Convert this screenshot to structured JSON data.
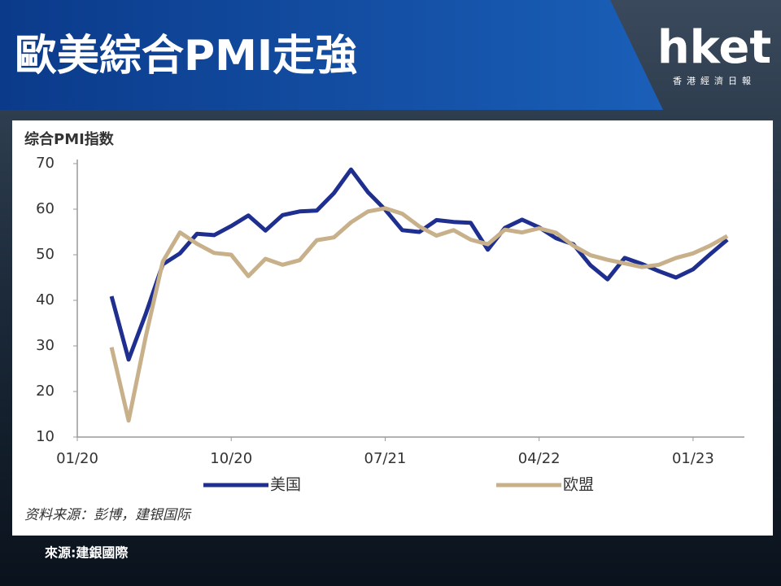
{
  "header": {
    "title": "歐美綜合PMI走強",
    "logo": "hket",
    "logo_subtitle": "香港經濟日報"
  },
  "source": "來源:建銀國際",
  "chart_data": {
    "type": "line",
    "y_axis_label": "综合PMI指数",
    "note": "资料来源：彭博，建银国际",
    "x": [
      "03/20",
      "04/20",
      "05/20",
      "06/20",
      "07/20",
      "08/20",
      "09/20",
      "10/20",
      "11/20",
      "12/20",
      "01/21",
      "02/21",
      "03/21",
      "04/21",
      "05/21",
      "06/21",
      "07/21",
      "08/21",
      "09/21",
      "10/21",
      "11/21",
      "12/21",
      "01/22",
      "02/22",
      "03/22",
      "04/22",
      "05/22",
      "06/22",
      "07/22",
      "08/22",
      "09/22",
      "10/22",
      "11/22",
      "12/22",
      "01/23",
      "02/23",
      "03/23"
    ],
    "xlim": [
      "01/20",
      "04/23"
    ],
    "xticks": [
      "01/20",
      "10/20",
      "07/21",
      "04/22",
      "01/23"
    ],
    "ylim": [
      10,
      70
    ],
    "yticks": [
      10,
      20,
      30,
      40,
      50,
      60,
      70
    ],
    "grid": false,
    "series": [
      {
        "name": "美国",
        "color": "#1f2f8f",
        "values": [
          40.9,
          27,
          37,
          47.9,
          50.3,
          54.6,
          54.3,
          56.3,
          58.6,
          55.3,
          58.7,
          59.5,
          59.7,
          63.5,
          68.7,
          63.7,
          59.9,
          55.4,
          55.0,
          57.6,
          57.2,
          57.0,
          51.1,
          55.9,
          57.7,
          56.0,
          53.6,
          52.3,
          47.7,
          44.6,
          49.3,
          48.0,
          46.4,
          45.0,
          46.8,
          50.1,
          53.3
        ]
      },
      {
        "name": "欧盟",
        "color": "#c8b08a",
        "values": [
          29.7,
          13.6,
          32,
          48.5,
          54.9,
          52.4,
          50.4,
          50.0,
          45.3,
          49.1,
          47.8,
          48.8,
          53.2,
          53.8,
          57.1,
          59.5,
          60.2,
          59.0,
          56.2,
          54.2,
          55.4,
          53.3,
          52.3,
          55.5,
          54.9,
          55.8,
          54.8,
          52.0,
          49.9,
          48.9,
          48.1,
          47.3,
          47.8,
          49.3,
          50.3,
          52.0,
          54.1
        ]
      }
    ]
  }
}
